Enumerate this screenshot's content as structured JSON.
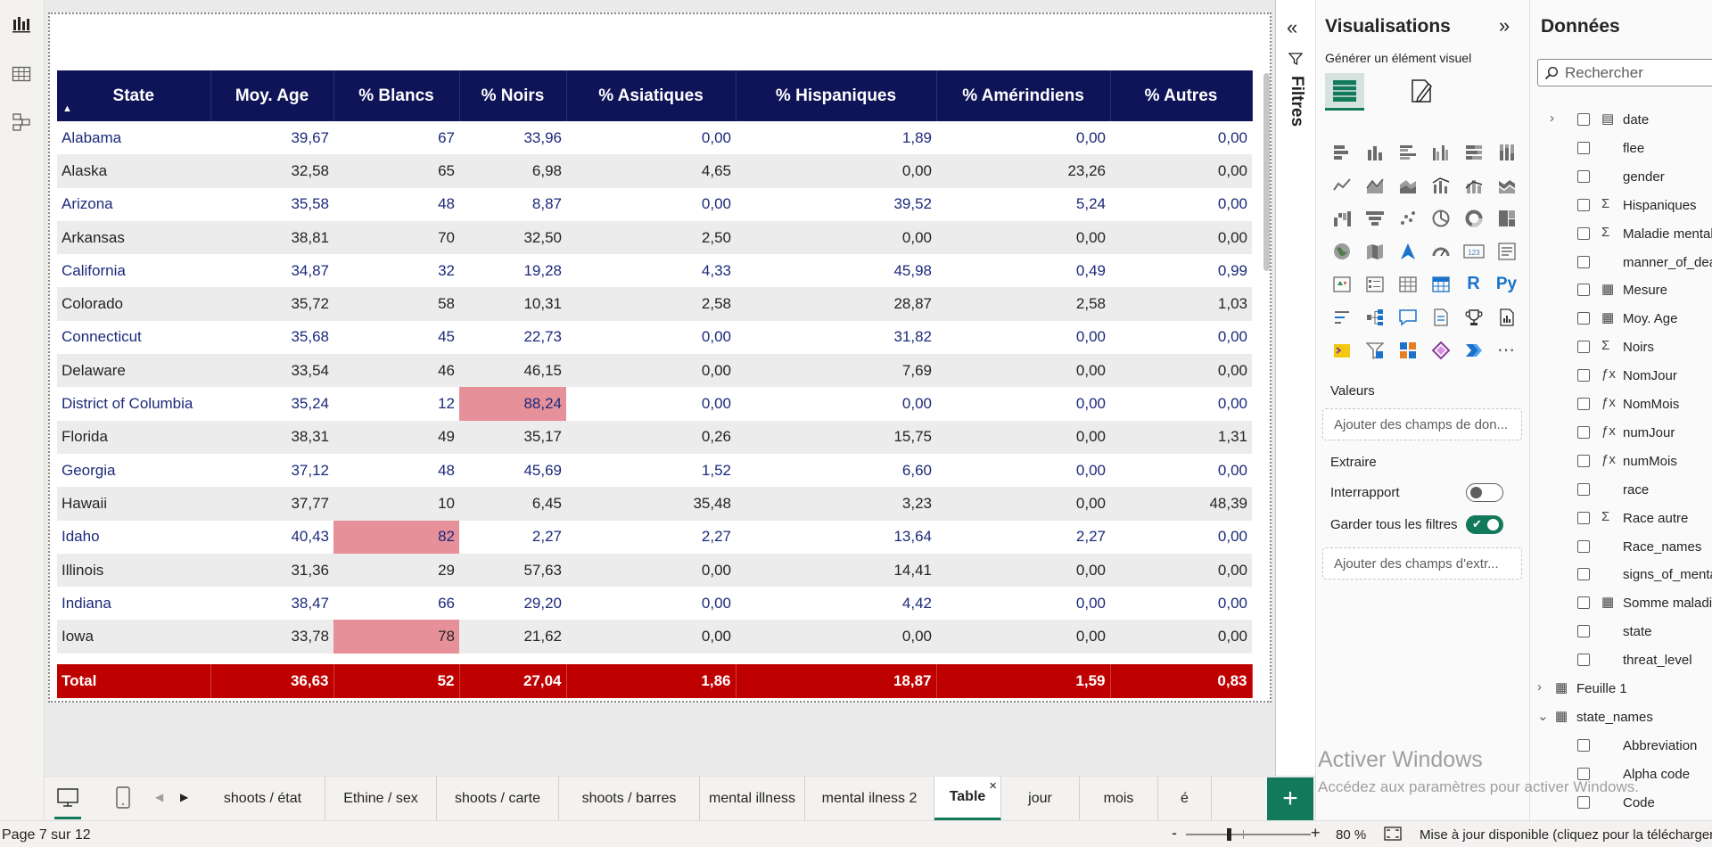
{
  "table": {
    "columns": [
      "State",
      "Moy. Age",
      "% Blancs",
      "% Noirs",
      "% Asiatiques",
      "% Hispaniques",
      "% Amérindiens",
      "% Autres"
    ],
    "rows": [
      [
        "Alabama",
        "39,67",
        "67",
        "33,96",
        "0,00",
        "1,89",
        "0,00",
        "0,00"
      ],
      [
        "Alaska",
        "32,58",
        "65",
        "6,98",
        "4,65",
        "0,00",
        "23,26",
        "0,00"
      ],
      [
        "Arizona",
        "35,58",
        "48",
        "8,87",
        "0,00",
        "39,52",
        "5,24",
        "0,00"
      ],
      [
        "Arkansas",
        "38,81",
        "70",
        "32,50",
        "2,50",
        "0,00",
        "0,00",
        "0,00"
      ],
      [
        "California",
        "34,87",
        "32",
        "19,28",
        "4,33",
        "45,98",
        "0,49",
        "0,99"
      ],
      [
        "Colorado",
        "35,72",
        "58",
        "10,31",
        "2,58",
        "28,87",
        "2,58",
        "1,03"
      ],
      [
        "Connecticut",
        "35,68",
        "45",
        "22,73",
        "0,00",
        "31,82",
        "0,00",
        "0,00"
      ],
      [
        "Delaware",
        "33,54",
        "46",
        "46,15",
        "0,00",
        "7,69",
        "0,00",
        "0,00"
      ],
      [
        "District of Columbia",
        "35,24",
        "12",
        "88,24",
        "0,00",
        "0,00",
        "0,00",
        "0,00"
      ],
      [
        "Florida",
        "38,31",
        "49",
        "35,17",
        "0,26",
        "15,75",
        "0,00",
        "1,31"
      ],
      [
        "Georgia",
        "37,12",
        "48",
        "45,69",
        "1,52",
        "6,60",
        "0,00",
        "0,00"
      ],
      [
        "Hawaii",
        "37,77",
        "10",
        "6,45",
        "35,48",
        "3,23",
        "0,00",
        "48,39"
      ],
      [
        "Idaho",
        "40,43",
        "82",
        "2,27",
        "2,27",
        "13,64",
        "2,27",
        "0,00"
      ],
      [
        "Illinois",
        "31,36",
        "29",
        "57,63",
        "0,00",
        "14,41",
        "0,00",
        "0,00"
      ],
      [
        "Indiana",
        "38,47",
        "66",
        "29,20",
        "0,00",
        "4,42",
        "0,00",
        "0,00"
      ],
      [
        "Iowa",
        "33,78",
        "78",
        "21,62",
        "0,00",
        "0,00",
        "0,00",
        "0,00"
      ]
    ],
    "highlights": [
      [
        8,
        3
      ],
      [
        12,
        2
      ],
      [
        15,
        2
      ]
    ],
    "highlight_color": "#e6909a",
    "total": [
      "Total",
      "36,63",
      "52",
      "27,04",
      "1,86",
      "18,87",
      "1,59",
      "0,83"
    ],
    "header_color": "#0f1459",
    "total_color": "#bf0000"
  },
  "filters": {
    "label": "Filtres"
  },
  "visualizations": {
    "title": "Visualisations",
    "subtitle": "Générer un élément visuel",
    "values_label": "Valeurs",
    "values_placeholder": "Ajouter des champs de don...",
    "drill_label": "Extraire",
    "cross_report_label": "Interrapport",
    "keep_filters_label": "Garder tous les filtres",
    "drill_placeholder": "Ajouter des champs d'extr..."
  },
  "data_pane": {
    "title": "Données",
    "search_placeholder": "Rechercher",
    "fields": [
      {
        "name": "date",
        "icon": "calendar-icon",
        "expand": true
      },
      {
        "name": "flee",
        "icon": ""
      },
      {
        "name": "gender",
        "icon": ""
      },
      {
        "name": "Hispaniques",
        "icon": "sigma-icon"
      },
      {
        "name": "Maladie mentale",
        "icon": "sigma-icon"
      },
      {
        "name": "manner_of_death",
        "icon": ""
      },
      {
        "name": "Mesure",
        "icon": "calculator-icon"
      },
      {
        "name": "Moy. Age",
        "icon": "calculator-icon"
      },
      {
        "name": "Noirs",
        "icon": "sigma-icon"
      },
      {
        "name": "NomJour",
        "icon": "fx-icon"
      },
      {
        "name": "NomMois",
        "icon": "fx-icon"
      },
      {
        "name": "numJour",
        "icon": "fx-icon"
      },
      {
        "name": "numMois",
        "icon": "fx-icon"
      },
      {
        "name": "race",
        "icon": ""
      },
      {
        "name": "Race autre",
        "icon": "sigma-icon"
      },
      {
        "name": "Race_names",
        "icon": ""
      },
      {
        "name": "signs_of_mental_illness",
        "icon": ""
      },
      {
        "name": "Somme maladie",
        "icon": "calculator-icon"
      },
      {
        "name": "state",
        "icon": ""
      },
      {
        "name": "threat_level",
        "icon": ""
      }
    ],
    "tables": [
      {
        "name": "Feuille 1",
        "expanded": false
      },
      {
        "name": "state_names",
        "expanded": true
      }
    ],
    "state_names_fields": [
      "Abbreviation",
      "Alpha code",
      "Code"
    ]
  },
  "page_tabs": [
    "shoots / état",
    "Ethine / sex",
    "shoots / carte",
    "shoots / barres",
    "mental illness",
    "mental ilness 2",
    "Table",
    "jour",
    "mois",
    "é"
  ],
  "active_tab": "Table",
  "status": {
    "page": "Page 7 sur 12",
    "zoom": "80 %",
    "update": "Mise à jour disponible (cliquez pour la télécharger)"
  },
  "watermark": {
    "title": "Activer Windows",
    "text": "Accédez aux paramètres pour activer Windows."
  },
  "accent_color": "#13795b"
}
